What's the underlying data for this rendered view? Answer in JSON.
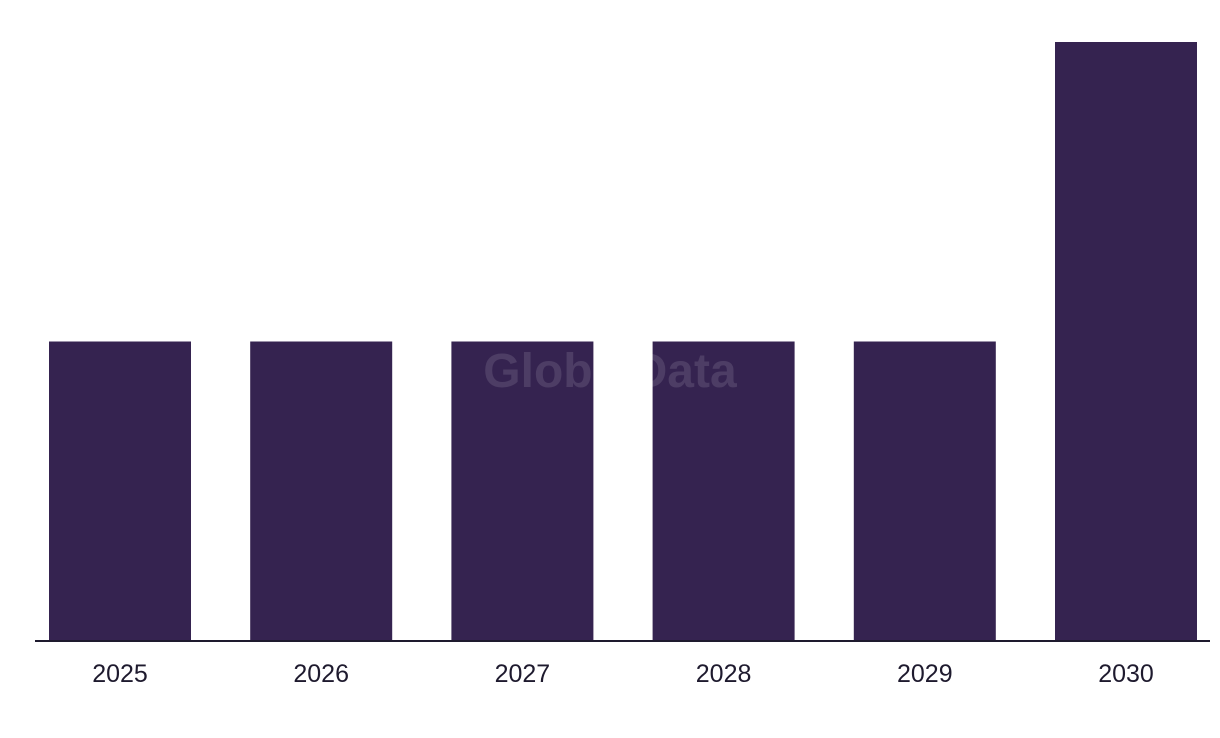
{
  "chart_data": {
    "type": "bar",
    "categories": [
      "2025",
      "2026",
      "2027",
      "2028",
      "2029",
      "2030"
    ],
    "values": [
      1,
      1,
      1,
      1,
      1,
      2
    ],
    "ylim": [
      0,
      2
    ],
    "grid": false,
    "title": "",
    "xlabel": "",
    "ylabel": ""
  },
  "watermark": "GlobalData",
  "colors": {
    "bar": "#352350",
    "axis": "#1e1a2e",
    "label": "#1e1a2e"
  }
}
